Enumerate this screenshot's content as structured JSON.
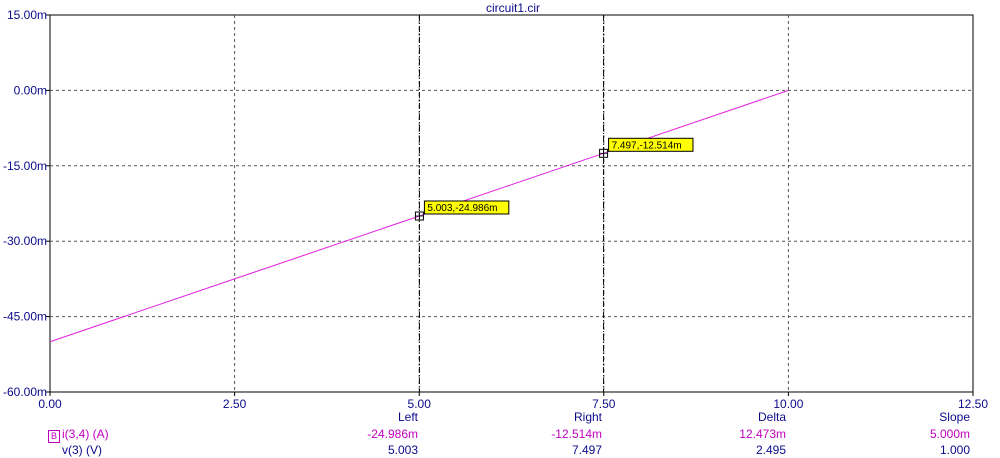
{
  "chart_data": {
    "type": "line",
    "title": "circuit1.cir",
    "x_ticks": [
      "0.00",
      "2.50",
      "5.00",
      "7.50",
      "10.00",
      "12.50"
    ],
    "y_ticks": [
      "15.00m",
      "0.00m",
      "-15.00m",
      "-30.00m",
      "-45.00m",
      "-60.00m"
    ],
    "xlim": [
      0,
      12.5
    ],
    "ylim": [
      -0.06,
      0.015
    ],
    "grid": true,
    "series": [
      {
        "name": "i(3,4) (A)",
        "color": "#e020e0",
        "x": [
          0,
          10
        ],
        "y": [
          -0.05,
          0
        ]
      }
    ],
    "cursors": [
      {
        "x": 5.003,
        "y": -0.024986,
        "label": "5.003,-24.986m"
      },
      {
        "x": 7.497,
        "y": -0.012514,
        "label": "7.497,-12.514m"
      }
    ]
  },
  "measurements": {
    "headers": {
      "left": "Left",
      "right": "Right",
      "delta": "Delta",
      "slope": "Slope"
    },
    "rows": [
      {
        "icon": "B",
        "label": "i(3,4) (A)",
        "left": "-24.986m",
        "right": "-12.514m",
        "delta": "12.473m",
        "slope": "5.000m"
      },
      {
        "label": "v(3) (V)",
        "left": "5.003",
        "right": "7.497",
        "delta": "2.495",
        "slope": "1.000"
      }
    ]
  }
}
